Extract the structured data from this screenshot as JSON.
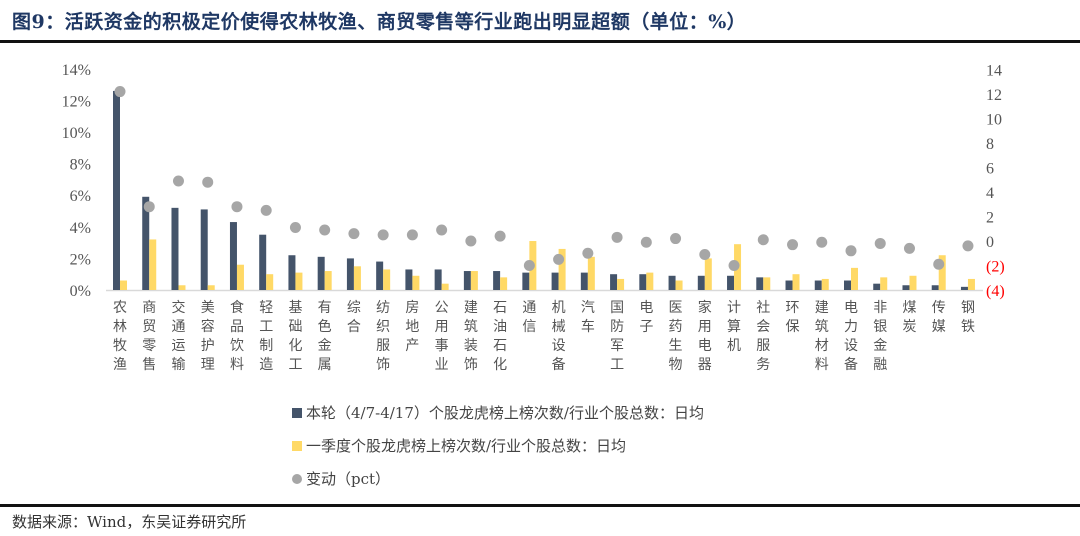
{
  "title": "图9：活跃资金的积极定价使得农林牧渔、商贸零售等行业跑出明显超额（单位：%）",
  "source": "数据来源：Wind，东吴证券研究所",
  "colors": {
    "current": "#44546a",
    "q1": "#ffd966",
    "change": "#a6a6a6",
    "negative_tick": "#ff0000"
  },
  "legend": [
    {
      "label": "本轮（4/7-4/17）个股龙虎榜上榜次数/行业个股总数：日均",
      "color": "#44546a",
      "shape": "square"
    },
    {
      "label": "一季度个股龙虎榜上榜次数/行业个股总数：日均",
      "color": "#ffd966",
      "shape": "square"
    },
    {
      "label": "变动（pct）",
      "color": "#a6a6a6",
      "shape": "circle"
    }
  ],
  "chart_data": {
    "type": "bar",
    "title": "活跃资金的积极定价使得农林牧渔、商贸零售等行业跑出明显超额（单位：%）",
    "xlabel": "",
    "ylabel": "",
    "y_left": {
      "ticks": [
        "0%",
        "2%",
        "4%",
        "6%",
        "8%",
        "10%",
        "12%",
        "14%"
      ],
      "range": [
        0,
        14
      ]
    },
    "y_right": {
      "ticks": [
        "(4)",
        "(2)",
        "0",
        "2",
        "4",
        "6",
        "8",
        "10",
        "12",
        "14"
      ],
      "range": [
        -4,
        14
      ]
    },
    "grid": false,
    "legend_position": "bottom",
    "categories": [
      "农林牧渔",
      "商贸零售",
      "交通运输",
      "美容护理",
      "食品饮料",
      "轻工制造",
      "基础化工",
      "有色金属",
      "综合",
      "纺织服饰",
      "房地产",
      "公用事业",
      "建筑装饰",
      "石油石化",
      "通信",
      "机械设备",
      "汽车",
      "国防军工",
      "电子",
      "医药生物",
      "家用电器",
      "计算机",
      "社会服务",
      "环保",
      "建筑材料",
      "电力设备",
      "非银金融",
      "煤炭",
      "传媒",
      "钢铁"
    ],
    "series": [
      {
        "name": "本轮（4/7-4/17）个股龙虎榜上榜次数/行业个股总数：日均",
        "type": "bar",
        "axis": "left",
        "values": [
          12.6,
          5.9,
          5.2,
          5.1,
          4.3,
          3.5,
          2.2,
          2.1,
          2.0,
          1.8,
          1.3,
          1.3,
          1.2,
          1.2,
          1.1,
          1.1,
          1.1,
          1.0,
          1.0,
          0.9,
          0.9,
          0.9,
          0.8,
          0.6,
          0.6,
          0.6,
          0.4,
          0.3,
          0.3,
          0.2
        ]
      },
      {
        "name": "一季度个股龙虎榜上榜次数/行业个股总数：日均",
        "type": "bar",
        "axis": "left",
        "values": [
          0.6,
          3.2,
          0.3,
          0.3,
          1.6,
          1.0,
          1.1,
          1.2,
          1.5,
          1.3,
          0.9,
          0.4,
          1.2,
          0.8,
          3.1,
          2.6,
          2.1,
          0.7,
          1.1,
          0.6,
          2.0,
          2.9,
          0.8,
          1.0,
          0.7,
          1.4,
          0.8,
          0.9,
          2.2,
          0.7
        ]
      },
      {
        "name": "变动（pct）",
        "type": "scatter",
        "axis": "right",
        "values": [
          12.2,
          2.8,
          4.9,
          4.8,
          2.8,
          2.5,
          1.1,
          0.9,
          0.6,
          0.5,
          0.5,
          0.9,
          0.0,
          0.4,
          -2.0,
          -1.5,
          -1.0,
          0.3,
          -0.1,
          0.2,
          -1.1,
          -2.0,
          0.1,
          -0.3,
          -0.1,
          -0.8,
          -0.2,
          -0.6,
          -1.9,
          -0.4
        ]
      }
    ]
  }
}
